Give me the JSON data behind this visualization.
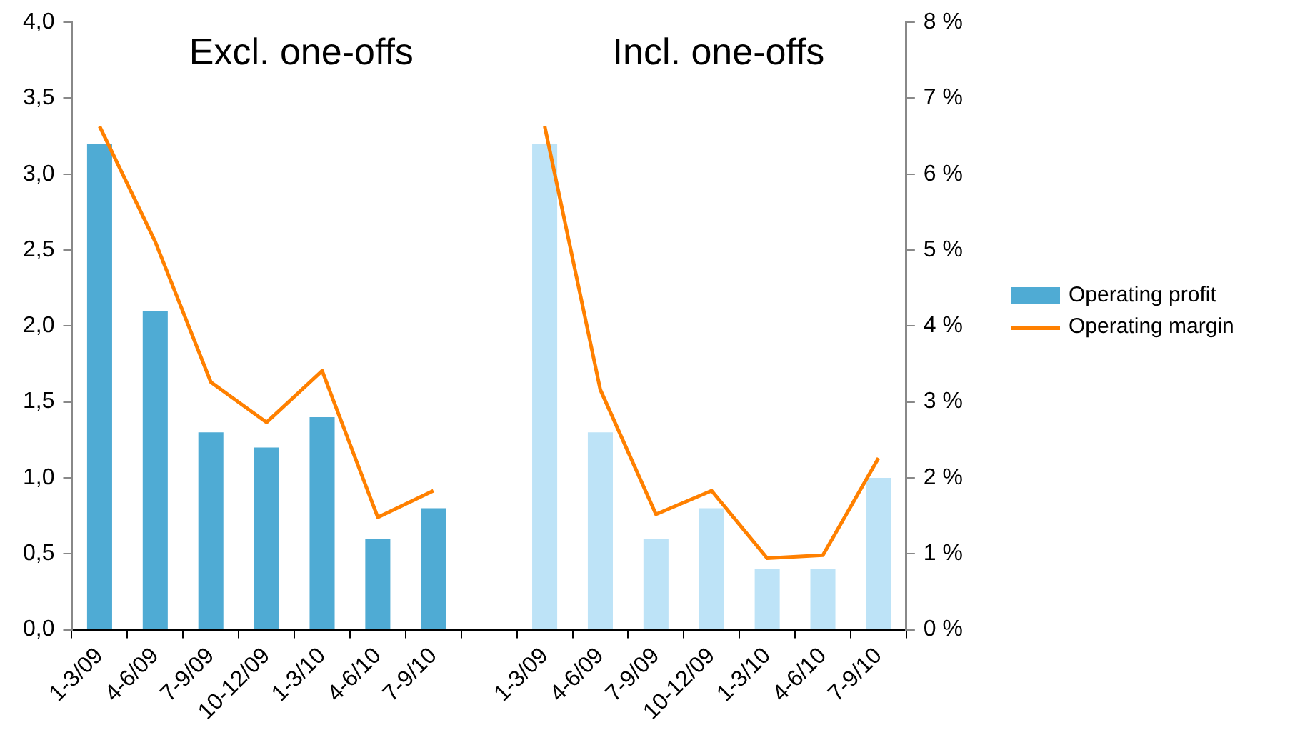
{
  "chart_data": {
    "type": "bar",
    "categories": [
      "1-3/09",
      "4-6/09",
      "7-9/09",
      "10-12/09",
      "1-3/10",
      "4-6/10",
      "7-9/10",
      null,
      "1-3/09",
      "4-6/09",
      "7-9/09",
      "10-12/09",
      "1-3/10",
      "4-6/10",
      "7-9/10"
    ],
    "series": [
      {
        "name": "Operating profit",
        "color": "#4fabd4",
        "colors": [
          "#4fabd4",
          "#4fabd4",
          "#4fabd4",
          "#4fabd4",
          "#4fabd4",
          "#4fabd4",
          "#4fabd4",
          "#4fabd4",
          "#bde3f7",
          "#bde3f7",
          "#bde3f7",
          "#bde3f7",
          "#bde3f7",
          "#bde3f7",
          "#bde3f7"
        ],
        "values": [
          3.2,
          2.1,
          1.3,
          1.2,
          1.4,
          0.6,
          0.8,
          null,
          3.2,
          1.3,
          0.6,
          0.8,
          0.4,
          0.4,
          1.0
        ]
      },
      {
        "name": "Operating margin",
        "type": "line",
        "axis": "y2",
        "color": "#ff8000",
        "values": [
          6.63,
          5.11,
          3.26,
          2.73,
          3.41,
          1.48,
          1.83,
          null,
          6.63,
          3.16,
          1.52,
          1.83,
          0.94,
          0.98,
          2.26
        ]
      }
    ],
    "annotations": [
      "Excl. one-offs",
      "Incl. one-offs"
    ],
    "ylim": [
      0,
      4
    ],
    "yticks": [
      {
        "value": 0,
        "label": "0,0"
      },
      {
        "value": 0.5,
        "label": "0,5"
      },
      {
        "value": 1,
        "label": "1,0"
      },
      {
        "value": 1.5,
        "label": "1,5"
      },
      {
        "value": 2,
        "label": "2,0"
      },
      {
        "value": 2.5,
        "label": "2,5"
      },
      {
        "value": 3,
        "label": "3,0"
      },
      {
        "value": 3.5,
        "label": "3,5"
      },
      {
        "value": 4,
        "label": "4,0"
      }
    ],
    "y2lim": [
      0,
      8
    ],
    "y2ticks": [
      {
        "value": 0,
        "label": "0 %"
      },
      {
        "value": 1,
        "label": "1 %"
      },
      {
        "value": 2,
        "label": "2 %"
      },
      {
        "value": 3,
        "label": "3 %"
      },
      {
        "value": 4,
        "label": "4 %"
      },
      {
        "value": 5,
        "label": "5 %"
      },
      {
        "value": 6,
        "label": "6 %"
      },
      {
        "value": 7,
        "label": "7 %"
      },
      {
        "value": 8,
        "label": "8 %"
      }
    ],
    "grid": false,
    "legend": "right"
  }
}
